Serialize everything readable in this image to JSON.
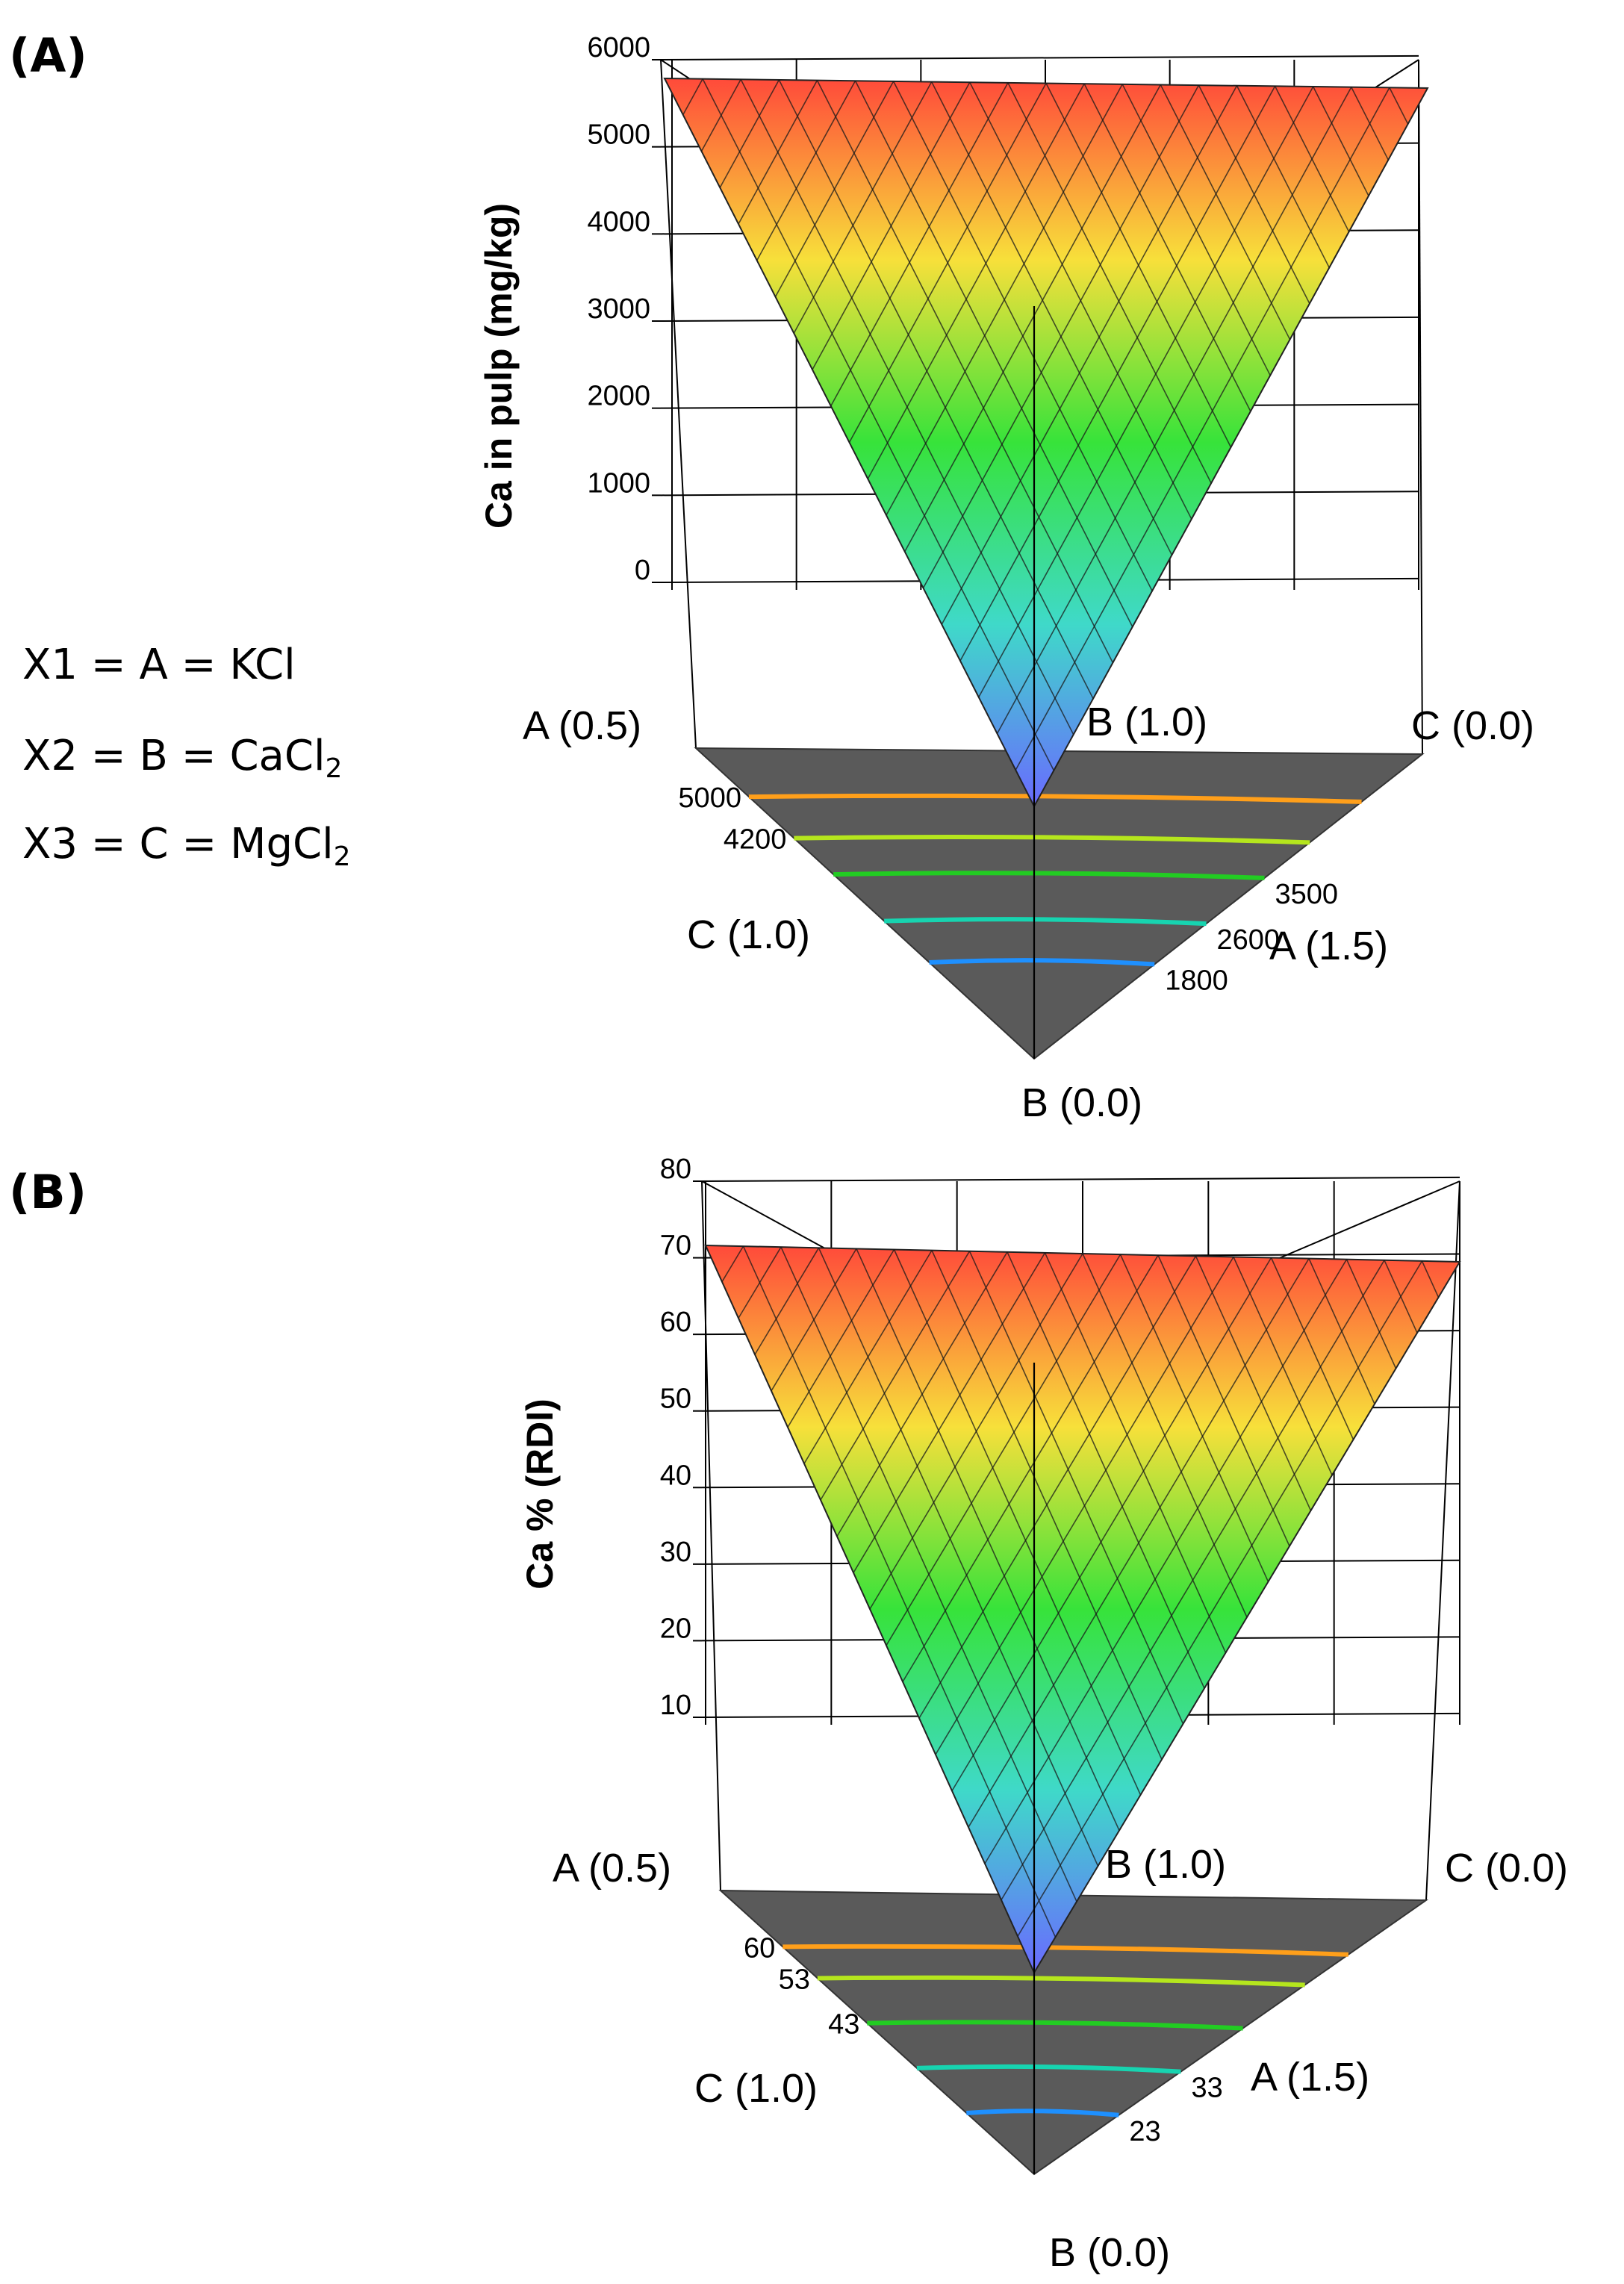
{
  "legend": {
    "lines": [
      {
        "prefix": "X1 = A = KCl",
        "sub": ""
      },
      {
        "prefix": "X2 = B = CaCl",
        "sub": "2"
      },
      {
        "prefix": "X3 = C = MgCl",
        "sub": "2"
      }
    ]
  },
  "colors": {
    "surface_high": "#ff4a3a",
    "surface_mid_high": "#f7e03a",
    "surface_mid": "#37e33a",
    "surface_mid_low": "#3fd9c9",
    "surface_low": "#6a6aff",
    "floor": "#5a5a5a",
    "contour_colors": [
      "#ff9f1a",
      "#b5e61d",
      "#22cc22",
      "#17d4b0",
      "#1e90ff"
    ]
  },
  "chart_data": [
    {
      "panel_label": "(A)",
      "type": "surface3d",
      "ylabel": "Ca in pulp (mg/kg)",
      "ylim": [
        0,
        6000
      ],
      "yticks": [
        "6000",
        "5000",
        "4000",
        "3000",
        "2000",
        "1000",
        "0"
      ],
      "vertex_labels": {
        "a_left": "A (0.5)",
        "b_top": "B (1.0)",
        "c_right": "C (0.0)",
        "c_left": "C (1.0)",
        "a_right": "A (1.5)",
        "b_bottom": "B (0.0)"
      },
      "surface_values": {
        "left": 5750,
        "right": 5650,
        "bottom": 0
      },
      "contours": [
        {
          "value": 5000,
          "label": "5000",
          "side": "left"
        },
        {
          "value": 4200,
          "label": "4200",
          "side": "left"
        },
        {
          "value": 3500,
          "label": "3500",
          "side": "right"
        },
        {
          "value": 2600,
          "label": "2600",
          "side": "right"
        },
        {
          "value": 1800,
          "label": "1800",
          "side": "right"
        }
      ]
    },
    {
      "panel_label": "(B)",
      "type": "surface3d",
      "ylabel": "Ca % (RDI)",
      "ylim": [
        10,
        80
      ],
      "yticks": [
        "80",
        "70",
        "60",
        "50",
        "40",
        "30",
        "20",
        "10"
      ],
      "vertex_labels": {
        "a_left": "A (0.5)",
        "b_top": "B (1.0)",
        "c_right": "C (0.0)",
        "c_left": "C (1.0)",
        "a_right": "A (1.5)",
        "b_bottom": "B (0.0)"
      },
      "surface_values": {
        "left": 71,
        "right": 69,
        "bottom": 10
      },
      "contours": [
        {
          "value": 60,
          "label": "60",
          "side": "left"
        },
        {
          "value": 53,
          "label": "53",
          "side": "left"
        },
        {
          "value": 43,
          "label": "43",
          "side": "left"
        },
        {
          "value": 33,
          "label": "33",
          "side": "right"
        },
        {
          "value": 23,
          "label": "23",
          "side": "right"
        }
      ]
    }
  ]
}
